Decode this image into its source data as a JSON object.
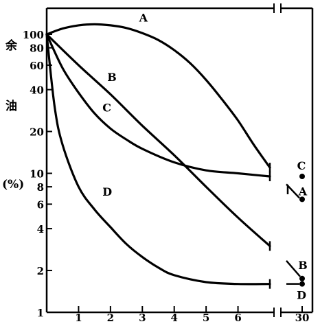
{
  "chart_data": {
    "type": "line",
    "title": "",
    "xlabel": "",
    "ylabel": "余 油 (%)",
    "ylabel_chars": [
      "余",
      "油",
      "(%)"
    ],
    "y_scale": "log",
    "xlim": [
      0,
      7
    ],
    "ylim": [
      1,
      100
    ],
    "x_ticks": [
      1,
      2,
      3,
      4,
      5,
      6
    ],
    "x_break_tick": 30,
    "y_ticks": [
      1,
      2,
      4,
      6,
      8,
      10,
      20,
      40,
      60,
      80,
      100
    ],
    "grid": false,
    "legend": "none",
    "series": [
      {
        "name": "A",
        "x": [
          0,
          0.5,
          1,
          1.5,
          2,
          2.5,
          3,
          3.5,
          4,
          4.5,
          5,
          5.5,
          6,
          6.5,
          7
        ],
        "y": [
          100,
          110,
          116,
          118,
          116,
          111,
          102,
          91,
          77,
          62,
          47,
          34,
          24,
          16,
          11
        ],
        "end_marker": "bar",
        "at_30": 6.5
      },
      {
        "name": "B",
        "x": [
          0,
          1,
          2,
          3,
          4,
          5,
          6,
          7
        ],
        "y": [
          100,
          60,
          37,
          22,
          13.5,
          8,
          4.8,
          3
        ],
        "end_marker": "bar",
        "at_30": 1.75
      },
      {
        "name": "C",
        "x": [
          0,
          0.5,
          1,
          1.5,
          2,
          2.5,
          3,
          4,
          5,
          6,
          7
        ],
        "y": [
          100,
          57,
          38,
          27,
          21,
          17.5,
          15,
          12,
          10.5,
          10,
          9.5
        ],
        "end_marker": "bar",
        "at_30": 9.5
      },
      {
        "name": "D",
        "x": [
          0,
          0.25,
          0.5,
          1,
          1.5,
          2,
          2.5,
          3,
          3.5,
          4,
          5,
          6,
          7
        ],
        "y": [
          100,
          30,
          16,
          8,
          5.5,
          4.1,
          3.1,
          2.5,
          2.1,
          1.85,
          1.65,
          1.6,
          1.6
        ],
        "end_marker": "bar",
        "at_30": 1.6
      }
    ]
  }
}
